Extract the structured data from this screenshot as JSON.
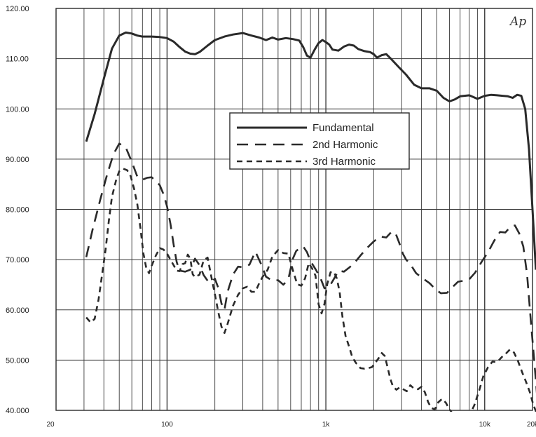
{
  "chart_data": {
    "type": "line",
    "logo": "Ap",
    "x_scale": "log",
    "xlim": [
      20,
      20000
    ],
    "ylim": [
      40,
      120
    ],
    "grid": true,
    "legend_position": "center-top",
    "x_tick_labels": [
      {
        "value": 20,
        "label": "20"
      },
      {
        "value": 100,
        "label": "100"
      },
      {
        "value": 1000,
        "label": "1k"
      },
      {
        "value": 10000,
        "label": "10k"
      },
      {
        "value": 20000,
        "label": "20k"
      }
    ],
    "y_tick_labels": [
      {
        "value": 120,
        "label": "120.00"
      },
      {
        "value": 110,
        "label": "110.00"
      },
      {
        "value": 100,
        "label": "100.00"
      },
      {
        "value": 90,
        "label": "90.000"
      },
      {
        "value": 80,
        "label": "80.000"
      },
      {
        "value": 70,
        "label": "70.000"
      },
      {
        "value": 60,
        "label": "60.000"
      },
      {
        "value": 50,
        "label": "50.000"
      },
      {
        "value": 40,
        "label": "40.000"
      }
    ],
    "series": [
      {
        "name": "Fundamental",
        "color": "#2a2a2a",
        "dash": "solid",
        "points": [
          [
            31,
            93.5
          ],
          [
            35,
            99
          ],
          [
            40,
            106
          ],
          [
            45,
            112
          ],
          [
            50,
            114.6
          ],
          [
            55,
            115.2
          ],
          [
            60,
            115
          ],
          [
            65,
            114.6
          ],
          [
            70,
            114.4
          ],
          [
            80,
            114.4
          ],
          [
            90,
            114.3
          ],
          [
            100,
            114.1
          ],
          [
            110,
            113.4
          ],
          [
            120,
            112.3
          ],
          [
            130,
            111.4
          ],
          [
            140,
            111
          ],
          [
            150,
            110.9
          ],
          [
            160,
            111.3
          ],
          [
            180,
            112.6
          ],
          [
            200,
            113.7
          ],
          [
            230,
            114.4
          ],
          [
            260,
            114.8
          ],
          [
            300,
            115.1
          ],
          [
            340,
            114.6
          ],
          [
            380,
            114.2
          ],
          [
            420,
            113.7
          ],
          [
            460,
            114.2
          ],
          [
            500,
            113.8
          ],
          [
            560,
            114.1
          ],
          [
            620,
            113.9
          ],
          [
            680,
            113.6
          ],
          [
            720,
            112.3
          ],
          [
            760,
            110.6
          ],
          [
            800,
            110.2
          ],
          [
            850,
            111.8
          ],
          [
            900,
            113.1
          ],
          [
            950,
            113.7
          ],
          [
            1000,
            113.3
          ],
          [
            1050,
            112.8
          ],
          [
            1100,
            111.8
          ],
          [
            1200,
            111.6
          ],
          [
            1300,
            112.4
          ],
          [
            1400,
            112.8
          ],
          [
            1500,
            112.6
          ],
          [
            1600,
            111.9
          ],
          [
            1750,
            111.5
          ],
          [
            1900,
            111.3
          ],
          [
            2000,
            110.9
          ],
          [
            2100,
            110.2
          ],
          [
            2250,
            110.7
          ],
          [
            2400,
            110.9
          ],
          [
            2600,
            109.8
          ],
          [
            2900,
            108.2
          ],
          [
            3200,
            106.8
          ],
          [
            3600,
            104.8
          ],
          [
            4000,
            104.1
          ],
          [
            4500,
            104.1
          ],
          [
            5000,
            103.6
          ],
          [
            5500,
            102.2
          ],
          [
            6000,
            101.5
          ],
          [
            6500,
            101.9
          ],
          [
            7000,
            102.5
          ],
          [
            8000,
            102.7
          ],
          [
            9000,
            102
          ],
          [
            10000,
            102.6
          ],
          [
            11000,
            102.8
          ],
          [
            12000,
            102.7
          ],
          [
            13000,
            102.6
          ],
          [
            14000,
            102.5
          ],
          [
            15000,
            102.2
          ],
          [
            16000,
            102.8
          ],
          [
            17000,
            102.6
          ],
          [
            18000,
            100
          ],
          [
            19000,
            92
          ],
          [
            20000,
            80
          ],
          [
            21000,
            68
          ]
        ]
      },
      {
        "name": "2nd Harmonic",
        "color": "#2a2a2a",
        "dash": "16 10",
        "points": [
          [
            31,
            70.5
          ],
          [
            34,
            76
          ],
          [
            38,
            82
          ],
          [
            42,
            87
          ],
          [
            46,
            91
          ],
          [
            50,
            93.1
          ],
          [
            55,
            92.3
          ],
          [
            60,
            89.5
          ],
          [
            65,
            86.5
          ],
          [
            70,
            85.9
          ],
          [
            75,
            86.3
          ],
          [
            80,
            86.4
          ],
          [
            85,
            85.6
          ],
          [
            90,
            84.8
          ],
          [
            95,
            83
          ],
          [
            100,
            80.6
          ],
          [
            105,
            77.2
          ],
          [
            110,
            73
          ],
          [
            115,
            69.5
          ],
          [
            120,
            67.8
          ],
          [
            130,
            67.6
          ],
          [
            140,
            68
          ],
          [
            150,
            70.2
          ],
          [
            160,
            68.9
          ],
          [
            170,
            66.9
          ],
          [
            180,
            65.8
          ],
          [
            190,
            65.5
          ],
          [
            200,
            66.2
          ],
          [
            210,
            64.4
          ],
          [
            220,
            61.3
          ],
          [
            230,
            60
          ],
          [
            240,
            63.5
          ],
          [
            260,
            67
          ],
          [
            280,
            68.6
          ],
          [
            300,
            68.5
          ],
          [
            330,
            69
          ],
          [
            360,
            71.6
          ],
          [
            390,
            69.2
          ],
          [
            420,
            66.6
          ],
          [
            460,
            65.8
          ],
          [
            500,
            65.9
          ],
          [
            540,
            65
          ],
          [
            580,
            66.1
          ],
          [
            620,
            70.2
          ],
          [
            650,
            71.7
          ],
          [
            690,
            72.4
          ],
          [
            720,
            72.6
          ],
          [
            760,
            71.5
          ],
          [
            800,
            69.7
          ],
          [
            860,
            68.1
          ],
          [
            920,
            66.5
          ],
          [
            980,
            64.3
          ],
          [
            1050,
            64.6
          ],
          [
            1120,
            66.1
          ],
          [
            1200,
            67.8
          ],
          [
            1300,
            67.6
          ],
          [
            1400,
            68.4
          ],
          [
            1500,
            69.2
          ],
          [
            1650,
            70.8
          ],
          [
            1800,
            72.2
          ],
          [
            2000,
            73.6
          ],
          [
            2200,
            74.6
          ],
          [
            2400,
            74.4
          ],
          [
            2600,
            75.6
          ],
          [
            2750,
            75.2
          ],
          [
            2900,
            73.3
          ],
          [
            3050,
            71.2
          ],
          [
            3200,
            70
          ],
          [
            3400,
            69.1
          ],
          [
            3700,
            67.3
          ],
          [
            4100,
            66.2
          ],
          [
            4500,
            65.3
          ],
          [
            4900,
            64.1
          ],
          [
            5300,
            63.3
          ],
          [
            5800,
            63.4
          ],
          [
            6300,
            64.6
          ],
          [
            6800,
            65.6
          ],
          [
            7400,
            65.8
          ],
          [
            8000,
            66.1
          ],
          [
            8700,
            67.4
          ],
          [
            9500,
            69.4
          ],
          [
            10500,
            71.5
          ],
          [
            11500,
            73.8
          ],
          [
            12500,
            75.5
          ],
          [
            13500,
            75.4
          ],
          [
            14500,
            76.5
          ],
          [
            15500,
            76.8
          ],
          [
            16500,
            75.2
          ],
          [
            17500,
            72.6
          ],
          [
            18500,
            67
          ],
          [
            19500,
            58
          ],
          [
            20500,
            50
          ],
          [
            21500,
            42
          ]
        ]
      },
      {
        "name": "3rd Harmonic",
        "color": "#2a2a2a",
        "dash": "8 6",
        "points": [
          [
            31,
            58.5
          ],
          [
            33,
            57.5
          ],
          [
            35,
            58.2
          ],
          [
            37,
            62
          ],
          [
            39,
            67
          ],
          [
            41,
            72
          ],
          [
            43,
            77.8
          ],
          [
            45,
            82.5
          ],
          [
            48,
            86.1
          ],
          [
            50,
            87.6
          ],
          [
            53,
            88.1
          ],
          [
            56,
            87.8
          ],
          [
            59,
            86.6
          ],
          [
            62,
            84.1
          ],
          [
            65,
            81
          ],
          [
            68,
            76.2
          ],
          [
            71,
            71.2
          ],
          [
            74,
            68.3
          ],
          [
            77,
            67.3
          ],
          [
            80,
            68.8
          ],
          [
            85,
            70.8
          ],
          [
            90,
            72.3
          ],
          [
            95,
            72
          ],
          [
            100,
            71.2
          ],
          [
            105,
            70
          ],
          [
            110,
            68.9
          ],
          [
            115,
            67.8
          ],
          [
            120,
            67.7
          ],
          [
            125,
            69.1
          ],
          [
            130,
            69.3
          ],
          [
            135,
            71
          ],
          [
            140,
            70.2
          ],
          [
            145,
            67.1
          ],
          [
            150,
            66.5
          ],
          [
            160,
            67
          ],
          [
            170,
            69.9
          ],
          [
            180,
            70.4
          ],
          [
            190,
            66.6
          ],
          [
            200,
            63.1
          ],
          [
            210,
            59.6
          ],
          [
            220,
            56.7
          ],
          [
            230,
            55.4
          ],
          [
            240,
            57.1
          ],
          [
            260,
            60.8
          ],
          [
            280,
            63
          ],
          [
            300,
            64.3
          ],
          [
            320,
            64.6
          ],
          [
            340,
            63.6
          ],
          [
            360,
            63.6
          ],
          [
            380,
            65.3
          ],
          [
            400,
            66.6
          ],
          [
            430,
            68
          ],
          [
            460,
            70.6
          ],
          [
            500,
            71.9
          ],
          [
            540,
            71.3
          ],
          [
            580,
            71.2
          ],
          [
            620,
            67.9
          ],
          [
            660,
            65.1
          ],
          [
            700,
            64.8
          ],
          [
            740,
            66.3
          ],
          [
            780,
            69.3
          ],
          [
            820,
            68.2
          ],
          [
            860,
            66.8
          ],
          [
            900,
            61.1
          ],
          [
            940,
            59.3
          ],
          [
            980,
            61.2
          ],
          [
            1020,
            65.1
          ],
          [
            1070,
            67.5
          ],
          [
            1120,
            67.6
          ],
          [
            1170,
            66.3
          ],
          [
            1220,
            63.6
          ],
          [
            1270,
            58.8
          ],
          [
            1330,
            54.8
          ],
          [
            1400,
            52.7
          ],
          [
            1470,
            50.5
          ],
          [
            1550,
            49.4
          ],
          [
            1650,
            48.4
          ],
          [
            1750,
            48.3
          ],
          [
            1850,
            48.4
          ],
          [
            1950,
            48.6
          ],
          [
            2050,
            49.5
          ],
          [
            2150,
            50.4
          ],
          [
            2250,
            51.4
          ],
          [
            2350,
            50.8
          ],
          [
            2450,
            48.5
          ],
          [
            2550,
            46.2
          ],
          [
            2650,
            44.7
          ],
          [
            2780,
            44.1
          ],
          [
            2920,
            44.6
          ],
          [
            3070,
            44.2
          ],
          [
            3230,
            43.8
          ],
          [
            3400,
            45
          ],
          [
            3600,
            44.3
          ],
          [
            3800,
            44.2
          ],
          [
            4000,
            44.7
          ],
          [
            4200,
            43.6
          ],
          [
            4400,
            41.7
          ],
          [
            4600,
            40.5
          ],
          [
            4850,
            40.2
          ],
          [
            5100,
            41.6
          ],
          [
            5400,
            42.3
          ],
          [
            5700,
            41.5
          ],
          [
            6000,
            40.2
          ],
          [
            6300,
            39.3
          ],
          [
            6700,
            38.8
          ],
          [
            7100,
            38.8
          ],
          [
            7600,
            38.8
          ],
          [
            8100,
            39.3
          ],
          [
            8600,
            41
          ],
          [
            9200,
            43.8
          ],
          [
            9800,
            46.8
          ],
          [
            10500,
            48.6
          ],
          [
            11200,
            49.7
          ],
          [
            12000,
            49.6
          ],
          [
            12800,
            50.6
          ],
          [
            13600,
            51.3
          ],
          [
            14400,
            52.1
          ],
          [
            15300,
            51.5
          ],
          [
            16200,
            49.8
          ],
          [
            17200,
            47.6
          ],
          [
            18200,
            45.7
          ],
          [
            19200,
            43.7
          ],
          [
            20200,
            41.2
          ],
          [
            21200,
            39.5
          ]
        ]
      }
    ]
  }
}
